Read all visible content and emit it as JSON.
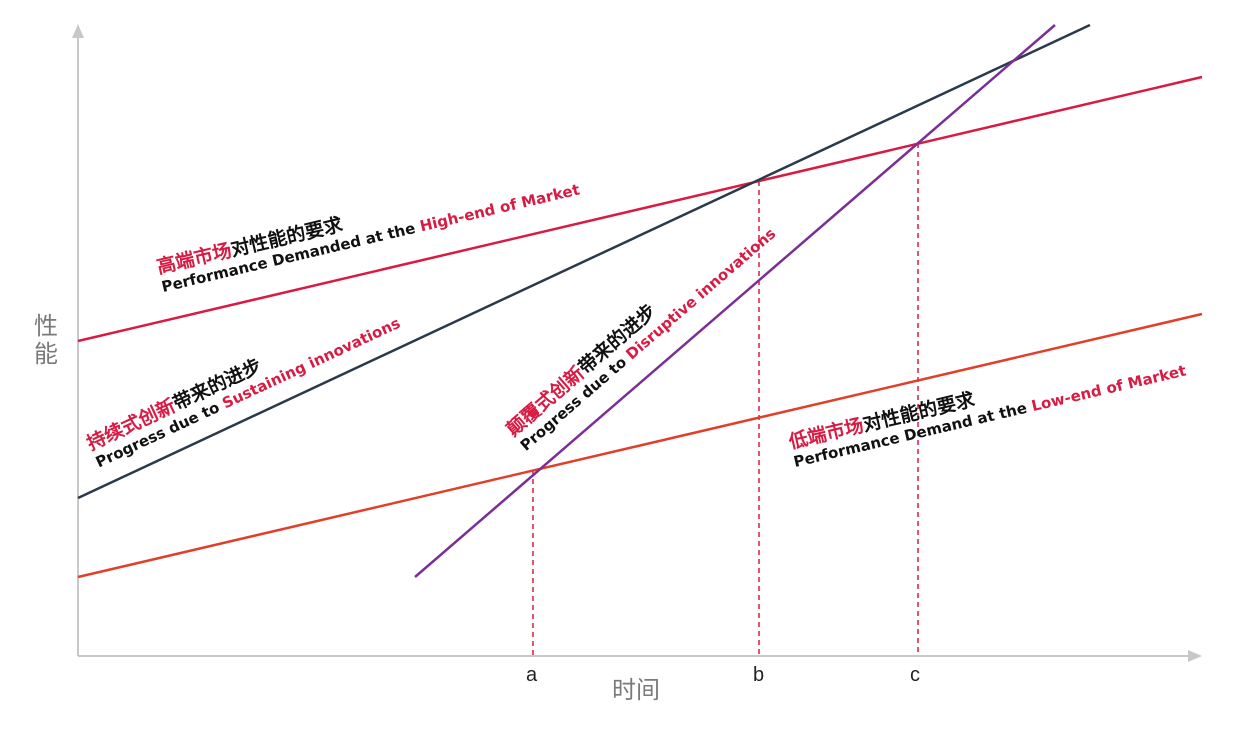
{
  "axes": {
    "y_title": "性能",
    "x_title": "时间",
    "ticks": [
      "a",
      "b",
      "c"
    ]
  },
  "labels": {
    "high_end": {
      "zh_red": "高端市场",
      "zh_black": "对性能的要求",
      "en_black": "Performance Demanded at the ",
      "en_red": "High-end of Market"
    },
    "sustaining": {
      "zh_red": "持续式创新",
      "zh_black": "带来的进步",
      "en_black": "Progress due to ",
      "en_red": "Sustaining innovations"
    },
    "disruptive": {
      "zh_red": "颠覆式创新",
      "zh_black": "带来的进步",
      "en_black": "Progress due to ",
      "en_red": "Disruptive innovations"
    },
    "low_end": {
      "zh_red": "低端市场",
      "zh_black": "对性能的要求",
      "en_black": "Performance Demand at the ",
      "en_red": "Low-end of Market"
    }
  },
  "colors": {
    "high_end_line": "#d81b43",
    "sustaining_line": "#2b3a4a",
    "disruptive_line": "#7b2f96",
    "low_end_line": "#e0402a",
    "guide_line": "#d81b43",
    "axis": "#c8c8c8",
    "label_red": "#d81b43"
  }
}
